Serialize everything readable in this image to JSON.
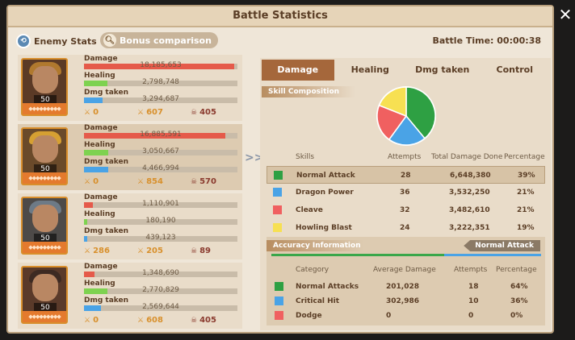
{
  "window": {
    "title": "Battle Statistics"
  },
  "top": {
    "enemy_stats": "Enemy Stats",
    "bonus_comparison": "Bonus comparison",
    "battle_time": "Battle Time: 00:00:38"
  },
  "stat_labels": {
    "damage": "Damage",
    "healing": "Healing",
    "dmg_taken": "Dmg taken"
  },
  "heroes": [
    {
      "level": "50",
      "damage": "18,185,653",
      "damage_frac": 0.98,
      "healing": "2,798,748",
      "healing_frac": 0.15,
      "dmg_taken": "3,294,687",
      "dmg_taken_frac": 0.12,
      "count_a": "0",
      "count_b": "607",
      "count_c": "405",
      "portrait": {
        "helm": "#b0792e",
        "bg": "#5b3a26"
      }
    },
    {
      "level": "50",
      "damage": "16,885,591",
      "damage_frac": 0.92,
      "healing": "3,050,667",
      "healing_frac": 0.16,
      "dmg_taken": "4,466,994",
      "dmg_taken_frac": 0.16,
      "count_a": "0",
      "count_b": "854",
      "count_c": "570",
      "portrait": {
        "helm": "#d6a032",
        "bg": "#6a4a2a"
      }
    },
    {
      "level": "50",
      "damage": "1,110,901",
      "damage_frac": 0.06,
      "healing": "180,190",
      "healing_frac": 0.02,
      "dmg_taken": "439,123",
      "dmg_taken_frac": 0.02,
      "count_a": "286",
      "count_b": "205",
      "count_c": "89",
      "portrait": {
        "helm": "#6d7a86",
        "bg": "#4d4a48"
      }
    },
    {
      "level": "50",
      "damage": "1,348,690",
      "damage_frac": 0.07,
      "healing": "2,770,829",
      "healing_frac": 0.15,
      "dmg_taken": "2,569,644",
      "dmg_taken_frac": 0.11,
      "count_a": "0",
      "count_b": "608",
      "count_c": "405",
      "portrait": {
        "helm": "#3d2a22",
        "bg": "#5a3a2a"
      }
    }
  ],
  "tabs": [
    "Damage",
    "Healing",
    "Dmg taken",
    "Control"
  ],
  "skill_composition": {
    "header": "Skill Composition",
    "columns": [
      "Skills",
      "Attempts",
      "Total Damage Done",
      "Percentage"
    ],
    "rows": [
      {
        "name": "Normal Attack",
        "attempts": "28",
        "total": "6,648,380",
        "pct": "39%",
        "color": "#2ea043"
      },
      {
        "name": "Dragon Power",
        "attempts": "36",
        "total": "3,532,250",
        "pct": "21%",
        "color": "#4aa3e6"
      },
      {
        "name": "Cleave",
        "attempts": "32",
        "total": "3,482,610",
        "pct": "21%",
        "color": "#f06060"
      },
      {
        "name": "Howling Blast",
        "attempts": "24",
        "total": "3,222,351",
        "pct": "19%",
        "color": "#f7e052"
      }
    ]
  },
  "chart_data": {
    "type": "pie",
    "categories": [
      "Normal Attack",
      "Dragon Power",
      "Cleave",
      "Howling Blast"
    ],
    "values": [
      39,
      21,
      21,
      19
    ],
    "colors": [
      "#2ea043",
      "#4aa3e6",
      "#f06060",
      "#f7e052"
    ]
  },
  "accuracy": {
    "header": "Accuracy Information",
    "filter": "Normal Attack",
    "bar_fraction": 0.64,
    "columns": [
      "Category",
      "Average Damage",
      "Attempts",
      "Percentage"
    ],
    "rows": [
      {
        "name": "Normal Attacks",
        "avg": "201,028",
        "attempts": "18",
        "pct": "64%",
        "color": "#2ea043"
      },
      {
        "name": "Critical Hit",
        "avg": "302,986",
        "attempts": "10",
        "pct": "36%",
        "color": "#4aa3e6"
      },
      {
        "name": "Dodge",
        "avg": "0",
        "attempts": "0",
        "pct": "0%",
        "color": "#f06060"
      }
    ]
  }
}
